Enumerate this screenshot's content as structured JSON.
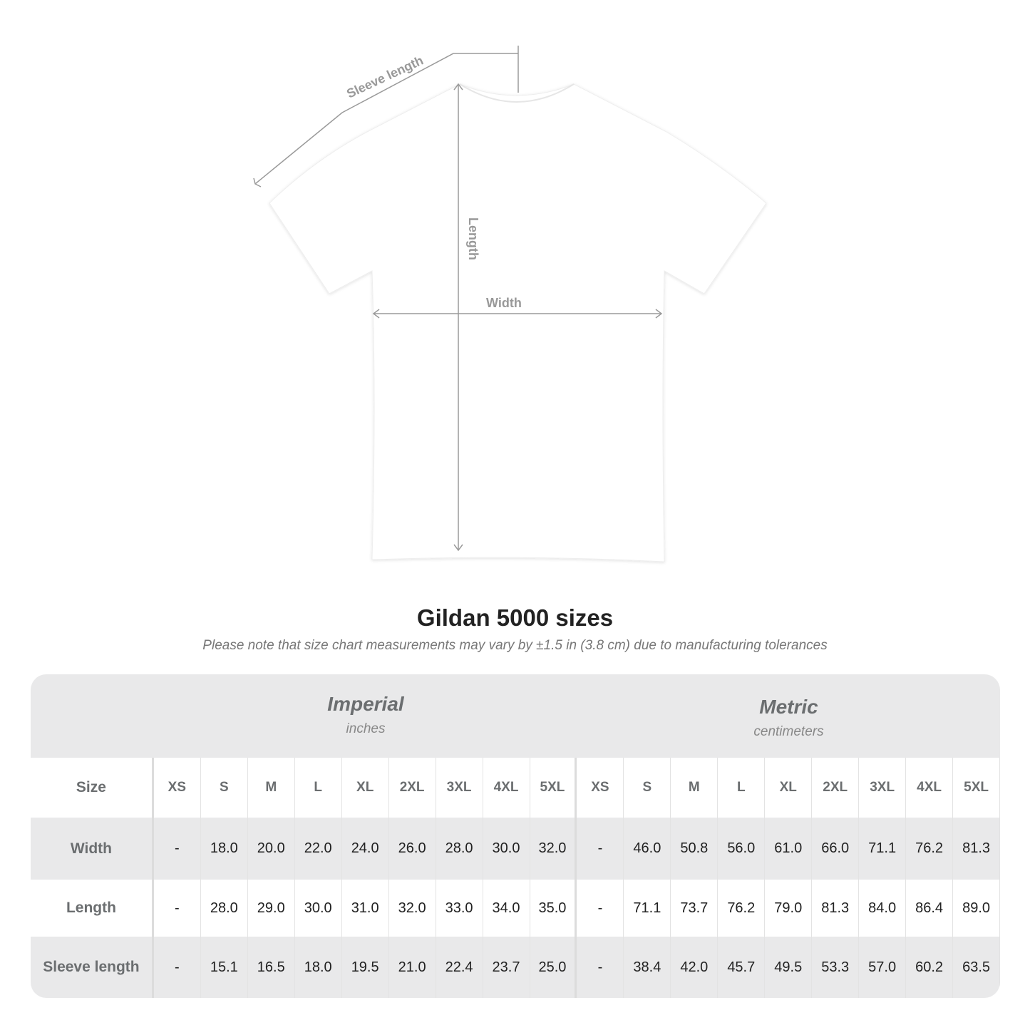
{
  "diagram": {
    "sleeve_label": "Sleeve length",
    "length_label": "Length",
    "width_label": "Width"
  },
  "title": "Gildan 5000 sizes",
  "subtitle": "Please note that size chart measurements may vary by ±1.5 in (3.8 cm) due to manufacturing tolerances",
  "imperial": {
    "name": "Imperial",
    "unit": "inches"
  },
  "metric": {
    "name": "Metric",
    "unit": "centimeters"
  },
  "table": {
    "size_label": "Size",
    "sizes": [
      "XS",
      "S",
      "M",
      "L",
      "XL",
      "2XL",
      "3XL",
      "4XL",
      "5XL"
    ],
    "rows": [
      {
        "label": "Width",
        "imperial": [
          "-",
          "18.0",
          "20.0",
          "22.0",
          "24.0",
          "26.0",
          "28.0",
          "30.0",
          "32.0"
        ],
        "metric": [
          "-",
          "46.0",
          "50.8",
          "56.0",
          "61.0",
          "66.0",
          "71.1",
          "76.2",
          "81.3"
        ]
      },
      {
        "label": "Length",
        "imperial": [
          "-",
          "28.0",
          "29.0",
          "30.0",
          "31.0",
          "32.0",
          "33.0",
          "34.0",
          "35.0"
        ],
        "metric": [
          "-",
          "71.1",
          "73.7",
          "76.2",
          "79.0",
          "81.3",
          "84.0",
          "86.4",
          "89.0"
        ]
      },
      {
        "label": "Sleeve length",
        "imperial": [
          "-",
          "15.1",
          "16.5",
          "18.0",
          "19.5",
          "21.0",
          "22.4",
          "23.7",
          "25.0"
        ],
        "metric": [
          "-",
          "38.4",
          "42.0",
          "45.7",
          "49.5",
          "53.3",
          "57.0",
          "60.2",
          "63.5"
        ]
      }
    ]
  }
}
